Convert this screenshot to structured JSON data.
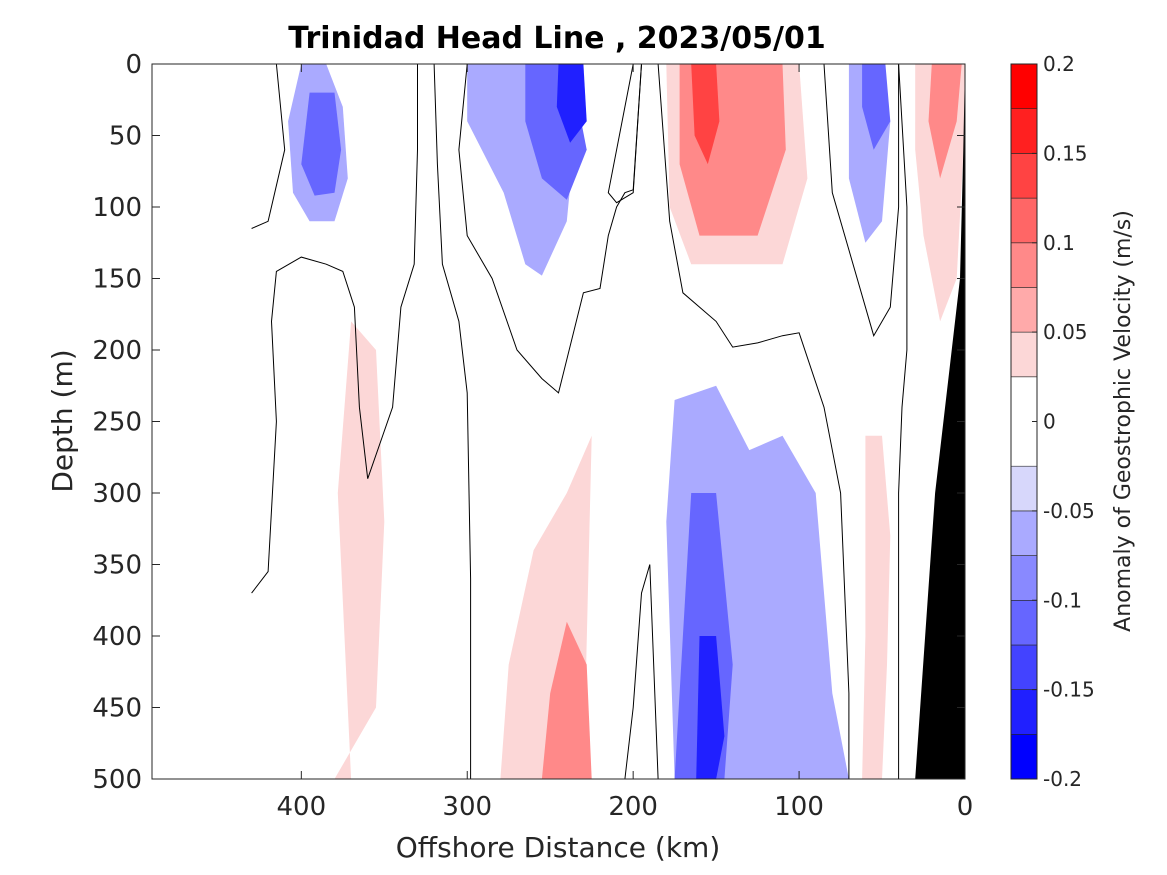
{
  "chart_data": {
    "type": "heatmap",
    "title": "Trinidad Head Line , 2023/05/01",
    "xlabel": "Offshore Distance (km)",
    "ylabel": "Depth (m)",
    "xlim": [
      490,
      0
    ],
    "ylim": [
      0,
      500
    ],
    "x_reversed": true,
    "y_reversed": true,
    "x_ticks": [
      400,
      300,
      200,
      100,
      0
    ],
    "y_ticks": [
      0,
      50,
      100,
      150,
      200,
      250,
      300,
      350,
      400,
      450,
      500
    ],
    "colorbar": {
      "label": "Anomaly of Geostrophic Velocity (m/s)",
      "range": [
        -0.2,
        0.2
      ],
      "ticks": [
        0.2,
        0.15,
        0.1,
        0.05,
        0,
        -0.05,
        -0.1,
        -0.15,
        -0.2
      ],
      "levels": [
        -0.2,
        -0.175,
        -0.15,
        -0.125,
        -0.1,
        -0.075,
        -0.05,
        -0.025,
        0.025,
        0.05,
        0.075,
        0.1,
        0.125,
        0.15,
        0.175,
        0.2
      ],
      "colors": [
        "#0000ff",
        "#2020ff",
        "#4343ff",
        "#6666ff",
        "#8989ff",
        "#aaaaff",
        "#d7d7fb",
        "#ffffff",
        "#fcd7d7",
        "#ffaaaa",
        "#ff8989",
        "#ff6666",
        "#ff4343",
        "#ff2020",
        "#ff0000"
      ]
    },
    "bottom_mask_color": "#000000",
    "zero_contour_color": "#000000",
    "anomaly_regions": [
      {
        "value": -0.05,
        "points": [
          [
            400,
            0
          ],
          [
            385,
            0
          ],
          [
            375,
            30
          ],
          [
            372,
            80
          ],
          [
            380,
            110
          ],
          [
            395,
            110
          ],
          [
            405,
            90
          ],
          [
            408,
            40
          ]
        ]
      },
      {
        "value": -0.1,
        "points": [
          [
            395,
            20
          ],
          [
            380,
            20
          ],
          [
            376,
            60
          ],
          [
            380,
            90
          ],
          [
            392,
            92
          ],
          [
            400,
            70
          ]
        ]
      },
      {
        "value": -0.05,
        "points": [
          [
            300,
            0
          ],
          [
            250,
            0
          ],
          [
            235,
            50
          ],
          [
            240,
            110
          ],
          [
            255,
            148
          ],
          [
            265,
            140
          ],
          [
            278,
            90
          ],
          [
            300,
            40
          ]
        ]
      },
      {
        "value": -0.1,
        "points": [
          [
            265,
            0
          ],
          [
            238,
            0
          ],
          [
            228,
            60
          ],
          [
            240,
            95
          ],
          [
            255,
            80
          ],
          [
            265,
            40
          ]
        ]
      },
      {
        "value": -0.15,
        "points": [
          [
            245,
            0
          ],
          [
            230,
            0
          ],
          [
            228,
            40
          ],
          [
            238,
            55
          ],
          [
            246,
            30
          ]
        ]
      },
      {
        "value": -0.05,
        "points": [
          [
            175,
            235
          ],
          [
            150,
            225
          ],
          [
            130,
            270
          ],
          [
            110,
            260
          ],
          [
            90,
            300
          ],
          [
            80,
            440
          ],
          [
            70,
            500
          ],
          [
            175,
            500
          ],
          [
            180,
            320
          ]
        ]
      },
      {
        "value": -0.1,
        "points": [
          [
            165,
            300
          ],
          [
            150,
            300
          ],
          [
            140,
            420
          ],
          [
            145,
            500
          ],
          [
            175,
            500
          ],
          [
            170,
            400
          ]
        ]
      },
      {
        "value": -0.15,
        "points": [
          [
            160,
            400
          ],
          [
            150,
            400
          ],
          [
            145,
            470
          ],
          [
            150,
            500
          ],
          [
            162,
            500
          ]
        ]
      },
      {
        "value": -0.05,
        "points": [
          [
            70,
            0
          ],
          [
            55,
            0
          ],
          [
            45,
            40
          ],
          [
            50,
            110
          ],
          [
            60,
            125
          ],
          [
            70,
            80
          ]
        ]
      },
      {
        "value": -0.1,
        "points": [
          [
            62,
            0
          ],
          [
            48,
            0
          ],
          [
            45,
            40
          ],
          [
            55,
            60
          ],
          [
            62,
            30
          ]
        ]
      },
      {
        "value": 0.05,
        "points": [
          [
            180,
            0
          ],
          [
            100,
            0
          ],
          [
            95,
            80
          ],
          [
            110,
            140
          ],
          [
            140,
            140
          ],
          [
            165,
            140
          ],
          [
            178,
            100
          ]
        ]
      },
      {
        "value": 0.1,
        "points": [
          [
            172,
            0
          ],
          [
            110,
            0
          ],
          [
            108,
            60
          ],
          [
            125,
            120
          ],
          [
            160,
            120
          ],
          [
            172,
            70
          ]
        ]
      },
      {
        "value": 0.15,
        "points": [
          [
            165,
            0
          ],
          [
            150,
            0
          ],
          [
            148,
            40
          ],
          [
            155,
            70
          ],
          [
            163,
            50
          ]
        ]
      },
      {
        "value": 0.05,
        "points": [
          [
            370,
            180
          ],
          [
            355,
            200
          ],
          [
            350,
            320
          ],
          [
            355,
            450
          ],
          [
            380,
            500
          ],
          [
            370,
            500
          ],
          [
            378,
            300
          ]
        ]
      },
      {
        "value": 0.05,
        "points": [
          [
            280,
            500
          ],
          [
            230,
            500
          ],
          [
            225,
            260
          ],
          [
            240,
            300
          ],
          [
            260,
            340
          ],
          [
            275,
            420
          ]
        ]
      },
      {
        "value": 0.1,
        "points": [
          [
            255,
            500
          ],
          [
            225,
            500
          ],
          [
            228,
            420
          ],
          [
            240,
            390
          ],
          [
            250,
            440
          ]
        ]
      },
      {
        "value": 0.05,
        "points": [
          [
            60,
            260
          ],
          [
            50,
            260
          ],
          [
            45,
            330
          ],
          [
            47,
            420
          ],
          [
            50,
            500
          ],
          [
            62,
            500
          ],
          [
            60,
            400
          ]
        ]
      },
      {
        "value": 0.05,
        "points": [
          [
            30,
            0
          ],
          [
            0,
            0
          ],
          [
            0,
            40
          ],
          [
            5,
            150
          ],
          [
            15,
            180
          ],
          [
            25,
            120
          ],
          [
            30,
            60
          ]
        ]
      },
      {
        "value": 0.1,
        "points": [
          [
            20,
            0
          ],
          [
            2,
            0
          ],
          [
            5,
            40
          ],
          [
            15,
            80
          ],
          [
            22,
            40
          ]
        ]
      }
    ],
    "bottom_mask": [
      [
        0,
        0
      ],
      [
        0,
        500
      ],
      [
        30,
        500
      ],
      [
        18,
        300
      ],
      [
        10,
        220
      ],
      [
        3,
        150
      ],
      [
        1,
        60
      ]
    ],
    "zero_contours": [
      [
        [
          415,
          0
        ],
        [
          410,
          60
        ],
        [
          420,
          110
        ],
        [
          430,
          115
        ]
      ],
      [
        [
          430,
          370
        ],
        [
          420,
          355
        ],
        [
          415,
          250
        ],
        [
          418,
          180
        ],
        [
          415,
          145
        ],
        [
          400,
          135
        ],
        [
          385,
          140
        ],
        [
          375,
          145
        ],
        [
          368,
          170
        ],
        [
          365,
          240
        ],
        [
          360,
          290
        ],
        [
          345,
          240
        ],
        [
          340,
          170
        ],
        [
          332,
          140
        ],
        [
          330,
          60
        ],
        [
          330,
          0
        ]
      ],
      [
        [
          320,
          0
        ],
        [
          318,
          70
        ],
        [
          315,
          140
        ],
        [
          305,
          180
        ],
        [
          300,
          230
        ],
        [
          298,
          360
        ],
        [
          298,
          500
        ]
      ],
      [
        [
          300,
          0
        ],
        [
          305,
          60
        ],
        [
          300,
          120
        ],
        [
          285,
          150
        ],
        [
          270,
          200
        ],
        [
          255,
          220
        ],
        [
          245,
          230
        ],
        [
          230,
          160
        ],
        [
          220,
          157
        ],
        [
          215,
          120
        ],
        [
          210,
          100
        ],
        [
          205,
          90
        ],
        [
          200,
          88
        ],
        [
          195,
          0
        ]
      ],
      [
        [
          205,
          500
        ],
        [
          200,
          450
        ],
        [
          195,
          370
        ],
        [
          190,
          350
        ],
        [
          185,
          500
        ]
      ],
      [
        [
          195,
          0
        ],
        [
          200,
          90
        ],
        [
          210,
          97
        ],
        [
          215,
          90
        ],
        [
          200,
          0
        ]
      ],
      [
        [
          185,
          0
        ],
        [
          178,
          110
        ],
        [
          170,
          160
        ],
        [
          150,
          180
        ],
        [
          140,
          198
        ],
        [
          125,
          195
        ],
        [
          110,
          190
        ],
        [
          100,
          188
        ],
        [
          85,
          240
        ],
        [
          75,
          300
        ],
        [
          70,
          440
        ],
        [
          70,
          500
        ]
      ],
      [
        [
          85,
          0
        ],
        [
          80,
          90
        ],
        [
          70,
          130
        ],
        [
          55,
          190
        ],
        [
          45,
          170
        ],
        [
          40,
          100
        ],
        [
          40,
          0
        ]
      ],
      [
        [
          40,
          0
        ],
        [
          35,
          100
        ],
        [
          35,
          200
        ],
        [
          38,
          240
        ],
        [
          40,
          300
        ],
        [
          40,
          500
        ]
      ]
    ]
  }
}
